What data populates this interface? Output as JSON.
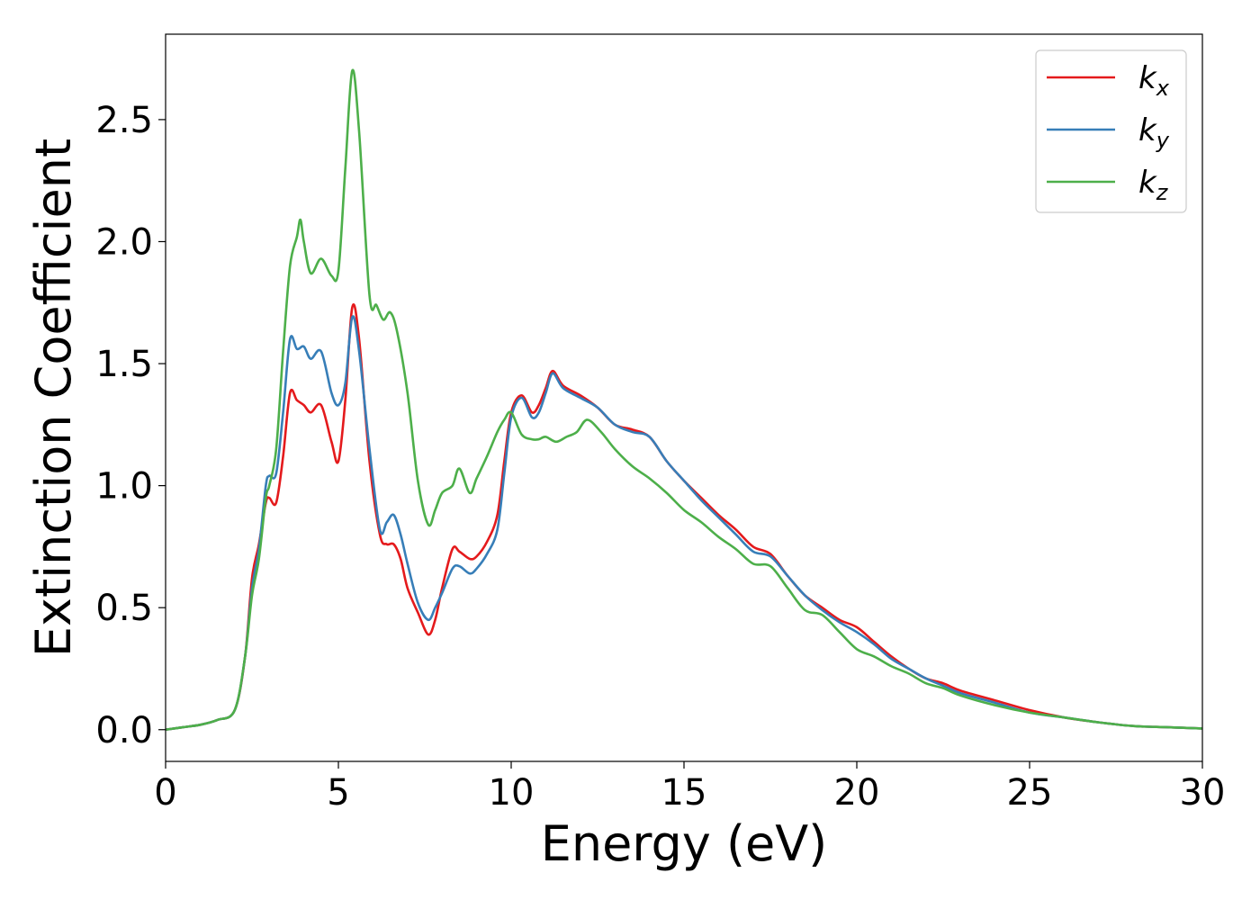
{
  "chart_data": {
    "type": "line",
    "title": "",
    "xlabel": "Energy (eV)",
    "ylabel": "Extinction Coefficient",
    "xlim": [
      0,
      30
    ],
    "ylim": [
      -0.13,
      2.85
    ],
    "xticks": [
      0,
      5,
      10,
      15,
      20,
      25,
      30
    ],
    "yticks": [
      0.0,
      0.5,
      1.0,
      1.5,
      2.0,
      2.5
    ],
    "xtick_labels": [
      "0",
      "5",
      "10",
      "15",
      "20",
      "25",
      "30"
    ],
    "ytick_labels": [
      "0.0",
      "0.5",
      "1.0",
      "1.5",
      "2.0",
      "2.5"
    ],
    "grid": false,
    "legend_position": "top-right",
    "series": [
      {
        "name": "k_x",
        "label_main": "k",
        "label_sub": "x",
        "color": "#e41a1c",
        "x": [
          0,
          0.5,
          1.0,
          1.5,
          2.0,
          2.3,
          2.5,
          2.7,
          2.9,
          3.0,
          3.2,
          3.4,
          3.6,
          3.8,
          4.0,
          4.2,
          4.5,
          4.8,
          5.0,
          5.2,
          5.4,
          5.6,
          5.9,
          6.2,
          6.4,
          6.6,
          6.8,
          7.0,
          7.3,
          7.6,
          7.8,
          8.0,
          8.3,
          8.5,
          8.8,
          9.0,
          9.3,
          9.6,
          9.8,
          10.0,
          10.3,
          10.6,
          10.8,
          11.0,
          11.2,
          11.5,
          12.0,
          12.5,
          13.0,
          13.5,
          14.0,
          14.5,
          15.0,
          15.5,
          16.0,
          16.5,
          17.0,
          17.5,
          18.0,
          18.5,
          19.0,
          19.5,
          20.0,
          20.5,
          21.0,
          21.5,
          22.0,
          22.5,
          23.0,
          24.0,
          25.0,
          26.0,
          27.0,
          28.0,
          29.0,
          30.0
        ],
        "y": [
          0.0,
          0.01,
          0.02,
          0.04,
          0.08,
          0.3,
          0.62,
          0.76,
          0.93,
          0.95,
          0.93,
          1.12,
          1.38,
          1.35,
          1.33,
          1.3,
          1.33,
          1.18,
          1.1,
          1.35,
          1.73,
          1.6,
          1.1,
          0.8,
          0.76,
          0.76,
          0.7,
          0.58,
          0.48,
          0.39,
          0.45,
          0.58,
          0.74,
          0.73,
          0.7,
          0.71,
          0.77,
          0.88,
          1.1,
          1.3,
          1.37,
          1.3,
          1.33,
          1.4,
          1.47,
          1.41,
          1.37,
          1.32,
          1.25,
          1.23,
          1.2,
          1.1,
          1.02,
          0.95,
          0.88,
          0.82,
          0.75,
          0.72,
          0.63,
          0.55,
          0.5,
          0.45,
          0.42,
          0.36,
          0.3,
          0.25,
          0.21,
          0.19,
          0.16,
          0.12,
          0.08,
          0.05,
          0.03,
          0.015,
          0.01,
          0.005
        ]
      },
      {
        "name": "k_y",
        "label_main": "k",
        "label_sub": "y",
        "color": "#377eb8",
        "x": [
          0,
          0.5,
          1.0,
          1.5,
          2.0,
          2.3,
          2.5,
          2.7,
          2.9,
          3.0,
          3.2,
          3.4,
          3.6,
          3.8,
          4.0,
          4.2,
          4.5,
          4.8,
          5.0,
          5.2,
          5.4,
          5.6,
          5.9,
          6.2,
          6.4,
          6.6,
          6.8,
          7.0,
          7.3,
          7.6,
          7.8,
          8.0,
          8.3,
          8.5,
          8.8,
          9.0,
          9.3,
          9.6,
          9.8,
          10.0,
          10.3,
          10.6,
          10.8,
          11.0,
          11.2,
          11.5,
          12.0,
          12.5,
          13.0,
          13.5,
          14.0,
          14.5,
          15.0,
          15.5,
          16.0,
          16.5,
          17.0,
          17.5,
          18.0,
          18.5,
          19.0,
          19.5,
          20.0,
          20.5,
          21.0,
          21.5,
          22.0,
          22.5,
          23.0,
          24.0,
          25.0,
          26.0,
          27.0,
          28.0,
          29.0,
          30.0
        ],
        "y": [
          0.0,
          0.01,
          0.02,
          0.04,
          0.08,
          0.3,
          0.58,
          0.74,
          1.0,
          1.04,
          1.05,
          1.3,
          1.6,
          1.56,
          1.57,
          1.52,
          1.55,
          1.38,
          1.33,
          1.42,
          1.69,
          1.55,
          1.15,
          0.82,
          0.85,
          0.88,
          0.8,
          0.68,
          0.52,
          0.45,
          0.5,
          0.56,
          0.66,
          0.67,
          0.64,
          0.66,
          0.72,
          0.82,
          1.05,
          1.28,
          1.36,
          1.28,
          1.3,
          1.38,
          1.46,
          1.4,
          1.36,
          1.32,
          1.25,
          1.22,
          1.2,
          1.1,
          1.02,
          0.94,
          0.87,
          0.8,
          0.73,
          0.71,
          0.63,
          0.55,
          0.49,
          0.44,
          0.4,
          0.35,
          0.29,
          0.25,
          0.21,
          0.18,
          0.15,
          0.11,
          0.07,
          0.05,
          0.03,
          0.015,
          0.01,
          0.005
        ]
      },
      {
        "name": "k_z",
        "label_main": "k",
        "label_sub": "z",
        "color": "#4daf4a",
        "x": [
          0,
          0.5,
          1.0,
          1.5,
          2.0,
          2.3,
          2.5,
          2.7,
          2.9,
          3.0,
          3.2,
          3.4,
          3.6,
          3.8,
          3.9,
          4.0,
          4.2,
          4.5,
          4.8,
          5.0,
          5.2,
          5.4,
          5.6,
          5.9,
          6.1,
          6.3,
          6.5,
          6.7,
          7.0,
          7.3,
          7.6,
          7.8,
          8.0,
          8.3,
          8.5,
          8.8,
          9.0,
          9.3,
          9.6,
          9.8,
          10.0,
          10.3,
          10.6,
          10.8,
          11.0,
          11.3,
          11.6,
          11.9,
          12.2,
          12.6,
          13.0,
          13.5,
          14.0,
          14.5,
          15.0,
          15.5,
          16.0,
          16.5,
          17.0,
          17.5,
          18.0,
          18.5,
          19.0,
          19.5,
          20.0,
          20.5,
          21.0,
          21.5,
          22.0,
          22.5,
          23.0,
          24.0,
          25.0,
          26.0,
          27.0,
          28.0,
          29.0,
          30.0
        ],
        "y": [
          0.0,
          0.01,
          0.02,
          0.04,
          0.08,
          0.3,
          0.55,
          0.7,
          0.95,
          1.0,
          1.15,
          1.55,
          1.9,
          2.02,
          2.09,
          2.0,
          1.87,
          1.93,
          1.86,
          1.88,
          2.3,
          2.7,
          2.45,
          1.78,
          1.74,
          1.68,
          1.71,
          1.63,
          1.38,
          1.02,
          0.84,
          0.9,
          0.97,
          1.0,
          1.07,
          0.97,
          1.03,
          1.12,
          1.22,
          1.27,
          1.3,
          1.21,
          1.19,
          1.19,
          1.2,
          1.18,
          1.2,
          1.22,
          1.27,
          1.22,
          1.15,
          1.08,
          1.03,
          0.97,
          0.9,
          0.85,
          0.79,
          0.74,
          0.68,
          0.67,
          0.58,
          0.49,
          0.47,
          0.4,
          0.33,
          0.3,
          0.26,
          0.23,
          0.19,
          0.17,
          0.14,
          0.1,
          0.07,
          0.05,
          0.03,
          0.015,
          0.01,
          0.005
        ]
      }
    ]
  }
}
